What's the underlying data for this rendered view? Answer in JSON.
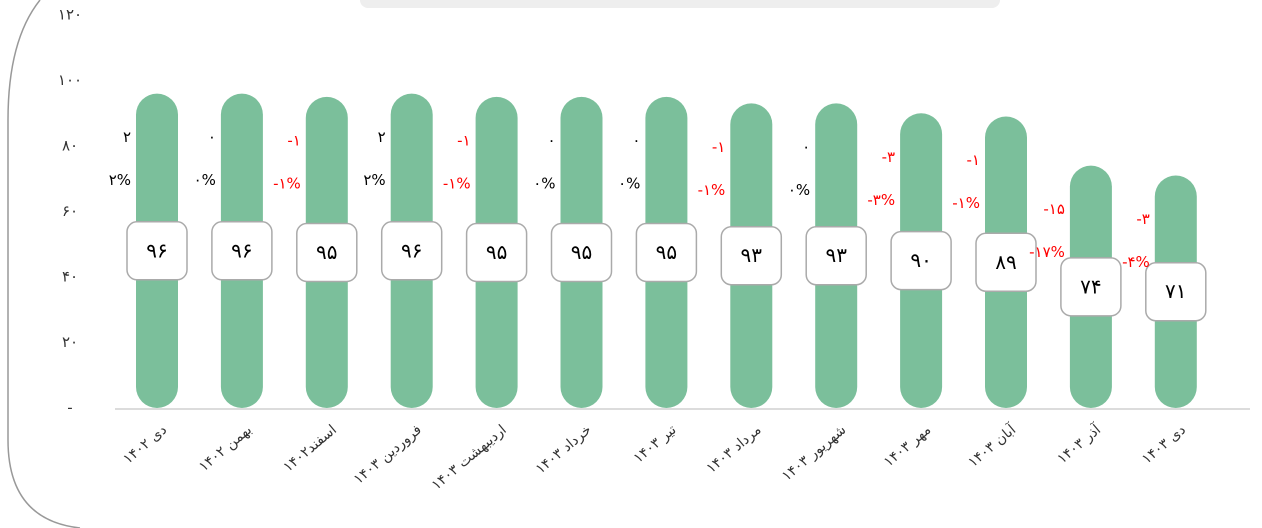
{
  "chart_data": {
    "type": "bar",
    "categories": [
      "دی ۱۴۰۲",
      "بهمن ۱۴۰۲",
      "اسفند۱۴۰۲",
      "فروردین ۱۴۰۳",
      "اردیبهشت ۱۴۰۳",
      "خرداد ۱۴۰۳",
      "تیر ۱۴۰۳",
      "مرداد ۱۴۰۳",
      "شهریور ۱۴۰۳",
      "مهر ۱۴۰۳",
      "آبان ۱۴۰۳",
      "آذر ۱۴۰۳",
      "دی ۱۴۰۳"
    ],
    "values": [
      96,
      96,
      95,
      96,
      95,
      95,
      95,
      93,
      93,
      90,
      89,
      74,
      71
    ],
    "value_labels": [
      "۹۶",
      "۹۶",
      "۹۵",
      "۹۶",
      "۹۵",
      "۹۵",
      "۹۵",
      "۹۳",
      "۹۳",
      "۹۰",
      "۸۹",
      "۷۴",
      "۷۱"
    ],
    "color": "#7bbf9b",
    "changes": {
      "values": [
        2,
        0,
        -1,
        2,
        -1,
        0,
        0,
        -1,
        0,
        -3,
        -1,
        -15,
        -3
      ],
      "value_labels": [
        "۲",
        "۰",
        "-۱",
        "۲",
        "-۱",
        "۰",
        "۰",
        "-۱",
        "۰",
        "-۳",
        "-۱",
        "-۱۵",
        "-۳"
      ]
    },
    "change_percents": {
      "values": [
        2,
        0,
        -1,
        2,
        -1,
        0,
        0,
        -1,
        0,
        -3,
        -1,
        -17,
        -4
      ],
      "value_labels": [
        "۲%",
        "۰%",
        "-۱%",
        "۲%",
        "-۱%",
        "۰%",
        "۰%",
        "-۱%",
        "۰%",
        "-۳%",
        "-۱%",
        "-۱۷%",
        "-۴%"
      ]
    },
    "positive_color": "#000000",
    "negative_color": "#ff0000",
    "ylim": [
      0,
      120
    ],
    "yticks": [
      {
        "value": 0,
        "label": "-"
      },
      {
        "value": 20,
        "label": "۲۰"
      },
      {
        "value": 40,
        "label": "۴۰"
      },
      {
        "value": 60,
        "label": "۶۰"
      },
      {
        "value": 80,
        "label": "۸۰"
      },
      {
        "value": 100,
        "label": "۱۰۰"
      },
      {
        "value": 120,
        "label": "۱۲۰"
      }
    ]
  }
}
